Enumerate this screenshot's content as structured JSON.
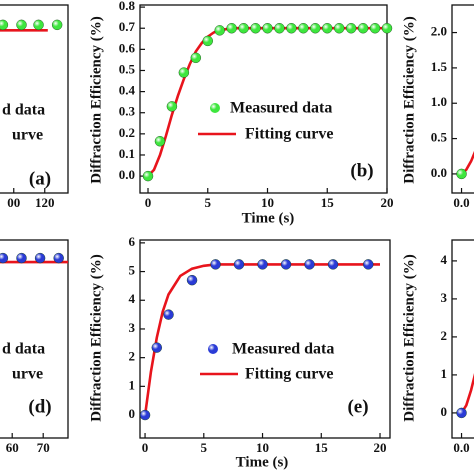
{
  "chart_data": [
    {
      "type": "scatter",
      "panel_label": "(a)",
      "xlim": [
        -25,
        135
      ],
      "ylim": [
        -0.08,
        0.81
      ],
      "xticks": [
        {
          "value": 100,
          "label": "00"
        },
        120
      ],
      "yticks": [],
      "series": [
        {
          "name": "d data",
          "color": "#3ee63e",
          "x": [
            93,
            105,
            116,
            128
          ],
          "values": [
            0.716,
            0.716,
            0.716,
            0.716
          ]
        },
        {
          "name": "urve",
          "color": "#e8141c",
          "x": [
            -25,
            122
          ],
          "values": [
            0.69,
            0.69
          ]
        }
      ]
    },
    {
      "type": "scatter",
      "panel_label": "(b)",
      "xlabel": "Time (s)",
      "ylabel": "Diffraction Efficiency (%)",
      "xlim": [
        -0.67,
        20
      ],
      "ylim": [
        -0.08,
        0.81
      ],
      "xticks": [
        0,
        5,
        10,
        15,
        20
      ],
      "yticks": [
        {
          "value": 0,
          "label": "0.0"
        },
        0.1,
        0.2,
        0.3,
        0.4,
        0.5,
        0.6,
        0.7,
        0.8
      ],
      "series": [
        {
          "name": "Measured data",
          "color": "#3ee63e",
          "x": [
            0,
            1,
            2,
            3,
            4,
            5,
            6,
            7,
            8,
            9,
            10,
            11,
            12,
            13,
            14,
            15,
            16,
            17,
            18,
            19,
            20
          ],
          "values": [
            0.0,
            0.165,
            0.33,
            0.49,
            0.56,
            0.64,
            0.69,
            0.7,
            0.7,
            0.7,
            0.7,
            0.7,
            0.7,
            0.7,
            0.7,
            0.7,
            0.7,
            0.7,
            0.7,
            0.7,
            0.7
          ]
        },
        {
          "name": "Fitting curve",
          "color": "#e8141c",
          "x": [
            0,
            0.5,
            1,
            1.5,
            2,
            2.5,
            3,
            3.5,
            4,
            4.5,
            5,
            5.5,
            6,
            7,
            8,
            10,
            15,
            20
          ],
          "values": [
            0,
            0.03,
            0.1,
            0.19,
            0.29,
            0.38,
            0.46,
            0.53,
            0.59,
            0.63,
            0.66,
            0.68,
            0.69,
            0.7,
            0.7,
            0.7,
            0.7,
            0.7
          ]
        }
      ]
    },
    {
      "type": "scatter",
      "ylabel": "Diffraction Efficiency (%)",
      "xlim": [
        -0.02,
        0.5
      ],
      "ylim": [
        -0.27,
        2.39
      ],
      "xticks": [
        {
          "value": 0,
          "label": "0.0"
        }
      ],
      "yticks": [
        {
          "value": 0,
          "label": "0.0"
        },
        0.5,
        {
          "value": 1,
          "label": "1.0"
        },
        1.5,
        {
          "value": 2,
          "label": "2.0"
        }
      ],
      "series": [
        {
          "color": "#3ee63e",
          "x": [
            0
          ],
          "values": [
            0
          ]
        },
        {
          "color": "#e8141c",
          "x": [
            0,
            0.01,
            0.02,
            0.03
          ],
          "values": [
            0,
            0.06,
            0.18,
            0.34
          ]
        }
      ]
    },
    {
      "type": "scatter",
      "panel_label": "(d)",
      "xlim": [
        -2,
        78
      ],
      "ylim": [
        -0.8,
        6.1
      ],
      "xticks": [
        60,
        70
      ],
      "yticks": [],
      "series": [
        {
          "name": "d data",
          "color": "#2a3bd6",
          "x": [
            57,
            63,
            69,
            75
          ],
          "values": [
            5.47,
            5.47,
            5.47,
            5.47
          ]
        },
        {
          "name": "urve",
          "color": "#e8141c",
          "x": [
            -2,
            78
          ],
          "values": [
            5.33,
            5.33
          ]
        }
      ]
    },
    {
      "type": "scatter",
      "panel_label": "(e)",
      "xlabel": "Time (s)",
      "ylabel": "Diffraction Efficiency (%)",
      "xlim": [
        -0.43,
        20.85
      ],
      "ylim": [
        -0.8,
        6.1
      ],
      "xticks": [
        0,
        5,
        10,
        15,
        20
      ],
      "yticks": [
        0,
        1,
        2,
        3,
        4,
        5,
        6
      ],
      "series": [
        {
          "name": "Measured data",
          "color": "#2a3bd6",
          "x": [
            0,
            1,
            2,
            4,
            6,
            8,
            10,
            12,
            14,
            16,
            19
          ],
          "values": [
            0,
            2.35,
            3.5,
            4.7,
            5.25,
            5.25,
            5.25,
            5.25,
            5.25,
            5.25,
            5.25
          ]
        },
        {
          "name": "Fitting curve",
          "color": "#e8141c",
          "x": [
            0,
            0.5,
            1,
            1.5,
            2,
            3,
            4,
            5,
            6,
            10,
            20
          ],
          "values": [
            0,
            1.5,
            2.7,
            3.6,
            4.2,
            4.85,
            5.1,
            5.2,
            5.25,
            5.25,
            5.25
          ]
        }
      ]
    },
    {
      "type": "scatter",
      "ylabel": "Diffraction Efficiency (%)",
      "xlim": [
        -0.02,
        0.5
      ],
      "ylim": [
        -0.66,
        4.55
      ],
      "xticks": [
        {
          "value": 0,
          "label": "0.0"
        }
      ],
      "yticks": [
        0,
        1,
        2,
        3,
        4
      ],
      "series": [
        {
          "color": "#2a3bd6",
          "x": [
            0
          ],
          "values": [
            0
          ]
        },
        {
          "color": "#e8141c",
          "x": [
            0,
            0.01,
            0.02,
            0.03
          ],
          "values": [
            0,
            0.2,
            0.6,
            1.1
          ]
        }
      ]
    }
  ]
}
